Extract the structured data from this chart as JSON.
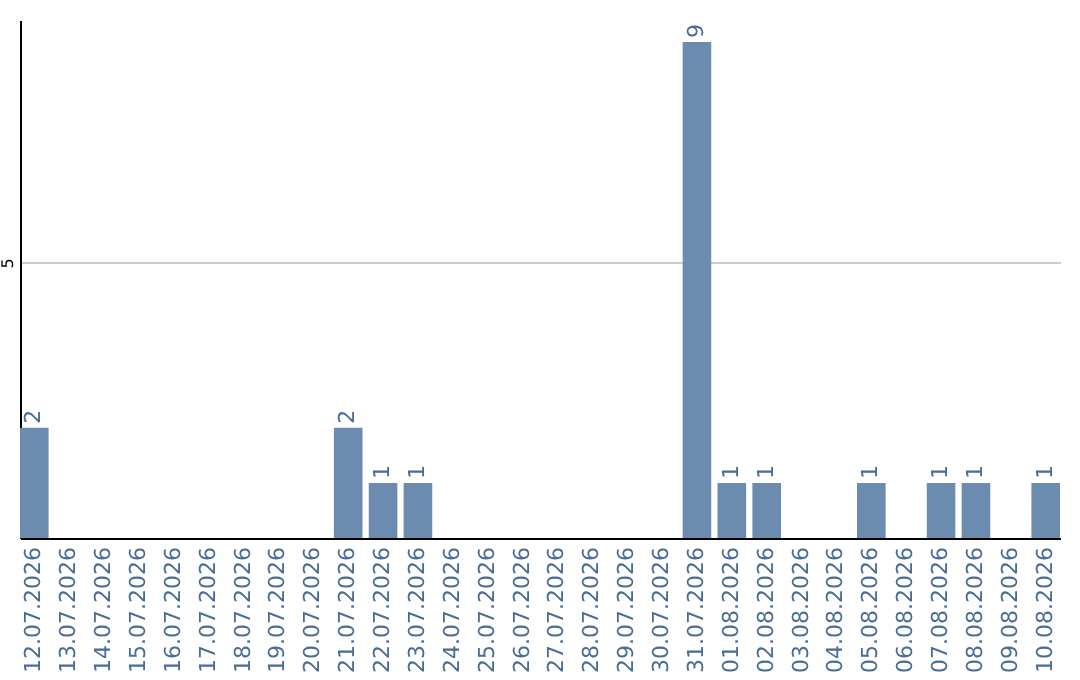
{
  "chart_data": {
    "type": "bar",
    "categories": [
      "12.07.2026",
      "13.07.2026",
      "14.07.2026",
      "15.07.2026",
      "16.07.2026",
      "17.07.2026",
      "18.07.2026",
      "19.07.2026",
      "20.07.2026",
      "21.07.2026",
      "22.07.2026",
      "23.07.2026",
      "24.07.2026",
      "25.07.2026",
      "26.07.2026",
      "27.07.2026",
      "28.07.2026",
      "29.07.2026",
      "30.07.2026",
      "31.07.2026",
      "01.08.2026",
      "02.08.2026",
      "03.08.2026",
      "04.08.2026",
      "05.08.2026",
      "06.08.2026",
      "07.08.2026",
      "08.08.2026",
      "09.08.2026",
      "10.08.2026"
    ],
    "values": [
      2,
      0,
      0,
      0,
      0,
      0,
      0,
      0,
      0,
      2,
      1,
      1,
      0,
      0,
      0,
      0,
      0,
      0,
      0,
      9,
      1,
      1,
      0,
      0,
      1,
      0,
      1,
      1,
      0,
      1
    ],
    "value_labels": [
      "2",
      null,
      null,
      null,
      null,
      null,
      null,
      null,
      null,
      "2",
      "1",
      "1",
      null,
      null,
      null,
      null,
      null,
      null,
      null,
      "9",
      "1",
      "1",
      null,
      null,
      "1",
      null,
      "1",
      "1",
      null,
      "1"
    ],
    "color": "#6b8cae",
    "ylim": [
      0,
      9.4
    ],
    "yticks": [
      5
    ],
    "grid": "y"
  }
}
